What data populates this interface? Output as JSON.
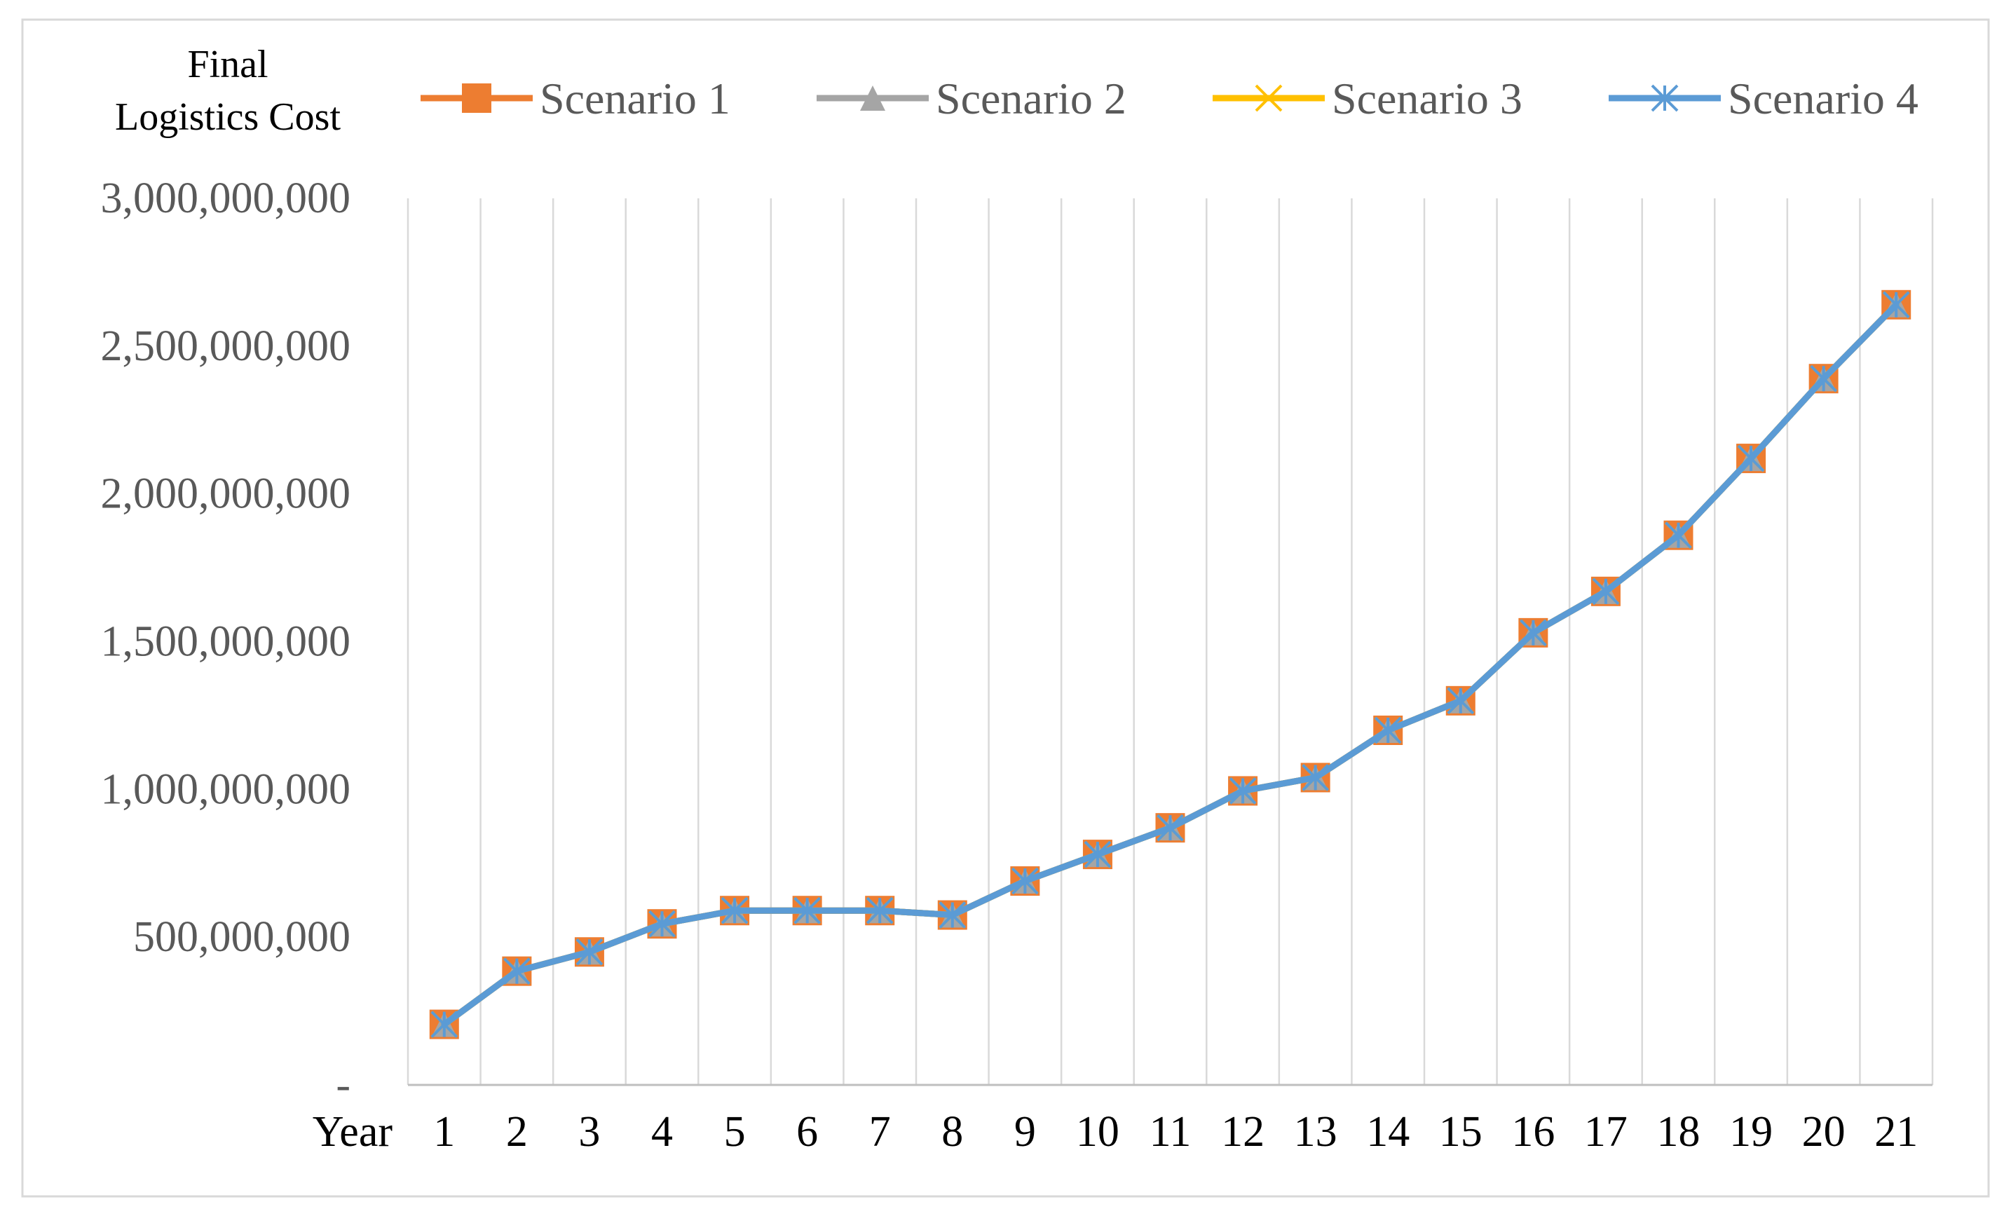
{
  "chart_data": {
    "type": "line",
    "ylabel_lines": [
      "Final",
      "Logistics Cost"
    ],
    "xlabel": "Year",
    "x": [
      1,
      2,
      3,
      4,
      5,
      6,
      7,
      8,
      9,
      10,
      11,
      12,
      13,
      14,
      15,
      16,
      17,
      18,
      19,
      20,
      21
    ],
    "ylim": [
      0,
      3000000000
    ],
    "yticks": [
      0,
      500000000,
      1000000000,
      1500000000,
      2000000000,
      2500000000,
      3000000000
    ],
    "ytick_labels": [
      "-",
      "500,000,000",
      "1,000,000,000",
      "1,500,000,000",
      "2,000,000,000",
      "2,500,000,000",
      "3,000,000,000"
    ],
    "grid": "vertical",
    "legend_position": "top",
    "series": [
      {
        "name": "Scenario 1",
        "color": "#ED7D31",
        "marker": "square",
        "values": [
          205000000,
          385000000,
          450000000,
          545000000,
          590000000,
          590000000,
          590000000,
          575000000,
          690000000,
          780000000,
          870000000,
          995000000,
          1040000000,
          1200000000,
          1300000000,
          1530000000,
          1670000000,
          1860000000,
          2120000000,
          2390000000,
          2640000000
        ]
      },
      {
        "name": "Scenario 2",
        "color": "#A5A5A5",
        "marker": "triangle",
        "values": [
          205000000,
          385000000,
          450000000,
          545000000,
          590000000,
          590000000,
          590000000,
          575000000,
          690000000,
          780000000,
          870000000,
          995000000,
          1040000000,
          1200000000,
          1300000000,
          1530000000,
          1670000000,
          1860000000,
          2120000000,
          2390000000,
          2640000000
        ]
      },
      {
        "name": "Scenario 3",
        "color": "#FFC000",
        "marker": "x",
        "values": [
          205000000,
          385000000,
          450000000,
          545000000,
          590000000,
          590000000,
          590000000,
          575000000,
          690000000,
          780000000,
          870000000,
          995000000,
          1040000000,
          1200000000,
          1300000000,
          1530000000,
          1670000000,
          1860000000,
          2120000000,
          2390000000,
          2640000000
        ]
      },
      {
        "name": "Scenario 4",
        "color": "#5B9BD5",
        "marker": "asterisk",
        "values": [
          205000000,
          385000000,
          450000000,
          545000000,
          590000000,
          590000000,
          590000000,
          575000000,
          690000000,
          780000000,
          870000000,
          995000000,
          1040000000,
          1200000000,
          1300000000,
          1530000000,
          1670000000,
          1860000000,
          2120000000,
          2390000000,
          2640000000
        ]
      }
    ]
  }
}
